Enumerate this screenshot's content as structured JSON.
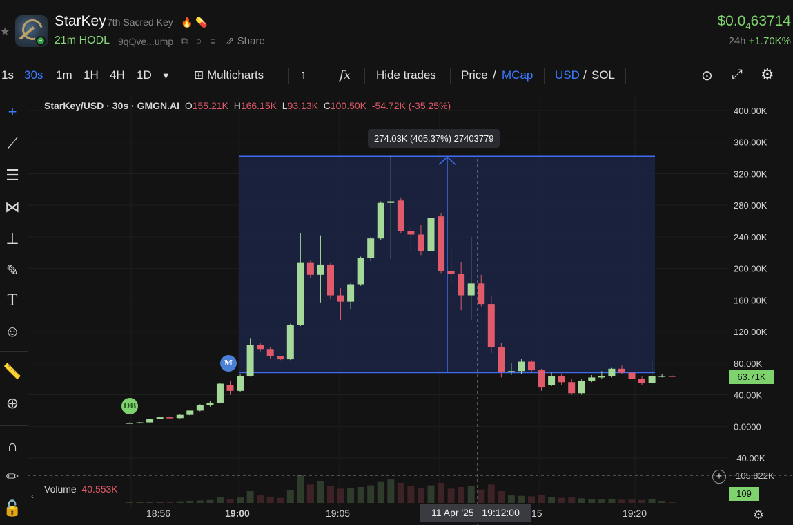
{
  "header": {
    "title": "StarKey",
    "subtitle": "7th Sacred Key",
    "age": "21m HODL",
    "address": "9qQve...ump",
    "share_label": "Share",
    "price_prefix": "$0.0",
    "price_sub": "4",
    "price_rest": "63714",
    "change_label": "24h",
    "change_value": "+1.70K%"
  },
  "toolbar": {
    "intervals": [
      "1s",
      "30s",
      "1m",
      "1H",
      "4H",
      "1D"
    ],
    "active_interval": "30s",
    "multicharts_label": "Multicharts",
    "hide_trades_label": "Hide trades",
    "price_label": "Price",
    "mcap_label": "MCap",
    "usd_label": "USD",
    "sol_label": "SOL",
    "slash": "/"
  },
  "legend": {
    "symbol": "StarKey/USD · 30s · GMGN.AI",
    "o_label": "O",
    "o": "155.21K",
    "h_label": "H",
    "h": "166.15K",
    "l_label": "L",
    "l": "93.13K",
    "c_label": "C",
    "c": "100.50K",
    "change": "-54.72K (-35.25%)"
  },
  "measure_tooltip": "274.03K (405.37%) 27403779",
  "current_price_label": "63.71K",
  "volume": {
    "label": "Volume",
    "value": "40.553K",
    "badge": "109",
    "cut_label": "105.822K"
  },
  "markers": [
    {
      "text": "DB",
      "color": "#7fd36f"
    },
    {
      "text": "M",
      "color": "#4a7fd6"
    }
  ],
  "time_cursor": {
    "date": "11 Apr '25",
    "time": "19:12:00"
  },
  "time_labels": [
    "18:56",
    "19:00",
    "19:05",
    "15",
    "19:20"
  ],
  "colors": {
    "up": "#a5d99a",
    "down": "#e15a6a",
    "accent": "#3a7bff",
    "measure_fill": "#1b2545",
    "measure_line": "#3f6cf0"
  },
  "chart_data": {
    "type": "candlestick",
    "y_unit": "USD market cap",
    "y_ticks": [
      "400.00K",
      "360.00K",
      "320.00K",
      "280.00K",
      "240.00K",
      "200.00K",
      "160.00K",
      "120.00K",
      "80.00K",
      "40.00K",
      "0.0000",
      "-40.00K"
    ],
    "ylim": [
      -40000,
      400000
    ],
    "candles": [
      {
        "o": 4000,
        "h": 5000,
        "l": 3500,
        "c": 4500,
        "v": 200
      },
      {
        "o": 4500,
        "h": 5500,
        "l": 4000,
        "c": 5000,
        "v": 150
      },
      {
        "o": 5000,
        "h": 10000,
        "l": 5000,
        "c": 9500,
        "v": 1200
      },
      {
        "o": 9500,
        "h": 12000,
        "l": 9000,
        "c": 11500,
        "v": 1500
      },
      {
        "o": 11500,
        "h": 13000,
        "l": 10000,
        "c": 10500,
        "v": 900
      },
      {
        "o": 10500,
        "h": 15000,
        "l": 10000,
        "c": 14500,
        "v": 2000
      },
      {
        "o": 14500,
        "h": 21000,
        "l": 13000,
        "c": 20000,
        "v": 2600
      },
      {
        "o": 20000,
        "h": 28000,
        "l": 19000,
        "c": 27000,
        "v": 3000
      },
      {
        "o": 27000,
        "h": 32000,
        "l": 25000,
        "c": 30000,
        "v": 3500
      },
      {
        "o": 30000,
        "h": 55000,
        "l": 29000,
        "c": 54000,
        "v": 7000
      },
      {
        "o": 52000,
        "h": 58000,
        "l": 40000,
        "c": 45000,
        "v": 5000
      },
      {
        "o": 45000,
        "h": 66000,
        "l": 44000,
        "c": 64000,
        "v": 6500
      },
      {
        "o": 64000,
        "h": 111000,
        "l": 63000,
        "c": 103000,
        "v": 14000
      },
      {
        "o": 103000,
        "h": 106000,
        "l": 95000,
        "c": 98000,
        "v": 9000
      },
      {
        "o": 98000,
        "h": 100000,
        "l": 86000,
        "c": 89000,
        "v": 7500
      },
      {
        "o": 89000,
        "h": 88000,
        "l": 84000,
        "c": 85000,
        "v": 6000
      },
      {
        "o": 85000,
        "h": 130000,
        "l": 84000,
        "c": 128000,
        "v": 15000
      },
      {
        "o": 128000,
        "h": 245000,
        "l": 127000,
        "c": 207000,
        "v": 33000
      },
      {
        "o": 207000,
        "h": 210000,
        "l": 188000,
        "c": 192000,
        "v": 22000
      },
      {
        "o": 192000,
        "h": 242000,
        "l": 157000,
        "c": 205000,
        "v": 26000
      },
      {
        "o": 205000,
        "h": 207000,
        "l": 161000,
        "c": 166000,
        "v": 20000
      },
      {
        "o": 166000,
        "h": 175000,
        "l": 135000,
        "c": 158000,
        "v": 17000
      },
      {
        "o": 158000,
        "h": 182000,
        "l": 148000,
        "c": 180000,
        "v": 18000
      },
      {
        "o": 180000,
        "h": 215000,
        "l": 178000,
        "c": 213000,
        "v": 19000
      },
      {
        "o": 213000,
        "h": 240000,
        "l": 209000,
        "c": 238000,
        "v": 21000
      },
      {
        "o": 238000,
        "h": 285000,
        "l": 236000,
        "c": 283000,
        "v": 25000
      },
      {
        "o": 283000,
        "h": 343000,
        "l": 212000,
        "c": 285000,
        "v": 28000
      },
      {
        "o": 286000,
        "h": 290000,
        "l": 245000,
        "c": 247000,
        "v": 24000
      },
      {
        "o": 247000,
        "h": 253000,
        "l": 222000,
        "c": 243000,
        "v": 20000
      },
      {
        "o": 243000,
        "h": 255000,
        "l": 217000,
        "c": 222000,
        "v": 18000
      },
      {
        "o": 222000,
        "h": 265000,
        "l": 218000,
        "c": 264000,
        "v": 21000
      },
      {
        "o": 266000,
        "h": 270000,
        "l": 194000,
        "c": 197000,
        "v": 24000
      },
      {
        "o": 197000,
        "h": 225000,
        "l": 182000,
        "c": 193000,
        "v": 17000
      },
      {
        "o": 193000,
        "h": 208000,
        "l": 147000,
        "c": 166000,
        "v": 19000
      },
      {
        "o": 166000,
        "h": 240000,
        "l": 135000,
        "c": 181000,
        "v": 20000
      },
      {
        "o": 181000,
        "h": 192000,
        "l": 152000,
        "c": 155000,
        "v": 16000
      },
      {
        "o": 155000,
        "h": 166000,
        "l": 93000,
        "c": 100000,
        "v": 22000
      },
      {
        "o": 100000,
        "h": 106000,
        "l": 62000,
        "c": 69000,
        "v": 14000
      },
      {
        "o": 69000,
        "h": 80000,
        "l": 65000,
        "c": 70000,
        "v": 9000
      },
      {
        "o": 70000,
        "h": 85000,
        "l": 66000,
        "c": 82000,
        "v": 8500
      },
      {
        "o": 82000,
        "h": 84000,
        "l": 68000,
        "c": 71000,
        "v": 8000
      },
      {
        "o": 71000,
        "h": 73000,
        "l": 45000,
        "c": 50000,
        "v": 9500
      },
      {
        "o": 52000,
        "h": 68000,
        "l": 51000,
        "c": 64000,
        "v": 7000
      },
      {
        "o": 64000,
        "h": 66000,
        "l": 52000,
        "c": 56000,
        "v": 6000
      },
      {
        "o": 56000,
        "h": 60000,
        "l": 40000,
        "c": 42000,
        "v": 6500
      },
      {
        "o": 42000,
        "h": 60000,
        "l": 40000,
        "c": 58000,
        "v": 5500
      },
      {
        "o": 58000,
        "h": 65000,
        "l": 56000,
        "c": 62000,
        "v": 4500
      },
      {
        "o": 62000,
        "h": 70000,
        "l": 60000,
        "c": 64000,
        "v": 4000
      },
      {
        "o": 64000,
        "h": 74000,
        "l": 62000,
        "c": 73000,
        "v": 4500
      },
      {
        "o": 73000,
        "h": 77000,
        "l": 66000,
        "c": 68000,
        "v": 3800
      },
      {
        "o": 68000,
        "h": 72000,
        "l": 58000,
        "c": 60000,
        "v": 4000
      },
      {
        "o": 60000,
        "h": 63000,
        "l": 52000,
        "c": 55000,
        "v": 3500
      },
      {
        "o": 55000,
        "h": 83000,
        "l": 52000,
        "c": 64000,
        "v": 4200
      },
      {
        "o": 63000,
        "h": 66000,
        "l": 62000,
        "c": 64000,
        "v": 2500
      },
      {
        "o": 64000,
        "h": 65000,
        "l": 63000,
        "c": 63710,
        "v": 1500
      }
    ],
    "measure": {
      "from": 68000,
      "to": 342000,
      "start_index": 11,
      "end_index": 54
    },
    "current_price": 63710
  }
}
